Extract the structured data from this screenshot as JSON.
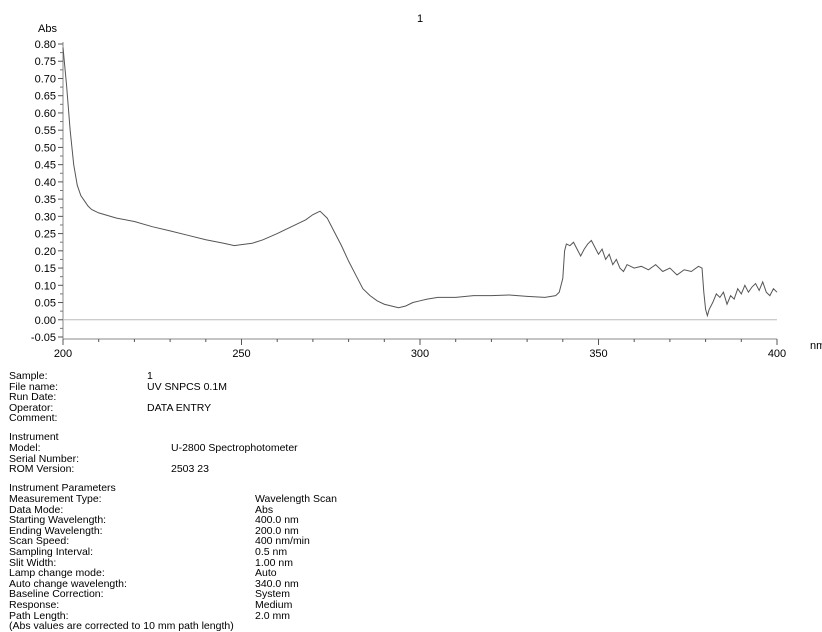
{
  "chart_data": {
    "type": "line",
    "title": "1",
    "ylabel": "Abs",
    "xlabel": "nm",
    "xlim": [
      200,
      400
    ],
    "ylim": [
      -0.05,
      0.8
    ],
    "xticks": [
      200,
      250,
      300,
      350,
      400
    ],
    "yticks": [
      "0.80",
      "0.75",
      "0.70",
      "0.65",
      "0.60",
      "0.55",
      "0.50",
      "0.45",
      "0.40",
      "0.35",
      "0.30",
      "0.25",
      "0.20",
      "0.15",
      "0.10",
      "0.05",
      "0.00",
      "-0.05"
    ],
    "series": [
      {
        "color": "#555555",
        "points": [
          [
            200,
            0.79
          ],
          [
            201,
            0.68
          ],
          [
            202,
            0.55
          ],
          [
            203,
            0.45
          ],
          [
            204,
            0.39
          ],
          [
            205,
            0.36
          ],
          [
            206,
            0.345
          ],
          [
            207,
            0.33
          ],
          [
            208,
            0.32
          ],
          [
            210,
            0.31
          ],
          [
            215,
            0.295
          ],
          [
            220,
            0.285
          ],
          [
            225,
            0.27
          ],
          [
            230,
            0.258
          ],
          [
            235,
            0.245
          ],
          [
            240,
            0.232
          ],
          [
            245,
            0.222
          ],
          [
            248,
            0.215
          ],
          [
            250,
            0.218
          ],
          [
            253,
            0.222
          ],
          [
            256,
            0.232
          ],
          [
            260,
            0.25
          ],
          [
            264,
            0.27
          ],
          [
            268,
            0.29
          ],
          [
            270,
            0.305
          ],
          [
            272,
            0.315
          ],
          [
            274,
            0.295
          ],
          [
            276,
            0.255
          ],
          [
            278,
            0.215
          ],
          [
            280,
            0.17
          ],
          [
            282,
            0.13
          ],
          [
            284,
            0.09
          ],
          [
            286,
            0.07
          ],
          [
            288,
            0.055
          ],
          [
            290,
            0.045
          ],
          [
            292,
            0.04
          ],
          [
            294,
            0.035
          ],
          [
            296,
            0.04
          ],
          [
            298,
            0.05
          ],
          [
            300,
            0.055
          ],
          [
            302,
            0.06
          ],
          [
            305,
            0.065
          ],
          [
            310,
            0.065
          ],
          [
            315,
            0.07
          ],
          [
            320,
            0.07
          ],
          [
            325,
            0.072
          ],
          [
            330,
            0.068
          ],
          [
            335,
            0.065
          ],
          [
            338,
            0.07
          ],
          [
            339,
            0.08
          ],
          [
            340,
            0.12
          ],
          [
            340.5,
            0.2
          ],
          [
            341,
            0.22
          ],
          [
            342,
            0.215
          ],
          [
            343,
            0.225
          ],
          [
            344,
            0.205
          ],
          [
            345,
            0.185
          ],
          [
            346,
            0.205
          ],
          [
            347,
            0.22
          ],
          [
            348,
            0.23
          ],
          [
            349,
            0.21
          ],
          [
            350,
            0.19
          ],
          [
            351,
            0.205
          ],
          [
            352,
            0.175
          ],
          [
            353,
            0.19
          ],
          [
            354,
            0.16
          ],
          [
            355,
            0.175
          ],
          [
            356,
            0.15
          ],
          [
            357,
            0.14
          ],
          [
            358,
            0.16
          ],
          [
            360,
            0.15
          ],
          [
            362,
            0.155
          ],
          [
            364,
            0.145
          ],
          [
            366,
            0.16
          ],
          [
            368,
            0.14
          ],
          [
            370,
            0.15
          ],
          [
            372,
            0.13
          ],
          [
            374,
            0.145
          ],
          [
            376,
            0.14
          ],
          [
            378,
            0.155
          ],
          [
            379,
            0.15
          ],
          [
            379.5,
            0.08
          ],
          [
            380,
            0.03
          ],
          [
            380.5,
            0.012
          ],
          [
            381,
            0.03
          ],
          [
            382,
            0.05
          ],
          [
            383,
            0.075
          ],
          [
            384,
            0.065
          ],
          [
            385,
            0.08
          ],
          [
            386,
            0.045
          ],
          [
            387,
            0.07
          ],
          [
            388,
            0.06
          ],
          [
            389,
            0.09
          ],
          [
            390,
            0.075
          ],
          [
            391,
            0.1
          ],
          [
            392,
            0.08
          ],
          [
            393,
            0.095
          ],
          [
            394,
            0.105
          ],
          [
            395,
            0.085
          ],
          [
            396,
            0.11
          ],
          [
            397,
            0.08
          ],
          [
            398,
            0.07
          ],
          [
            399,
            0.09
          ],
          [
            400,
            0.08
          ]
        ]
      }
    ],
    "zero_line": 0.0
  },
  "info": {
    "sample": {
      "rows": [
        {
          "label": "Sample:",
          "value": "1"
        },
        {
          "label": "File name:",
          "value": "UV SNPCS 0.1M"
        },
        {
          "label": "Run Date:",
          "value": ""
        },
        {
          "label": "Operator:",
          "value": "DATA ENTRY"
        },
        {
          "label": "Comment:",
          "value": ""
        }
      ]
    },
    "instrument": {
      "heading": "Instrument",
      "rows": [
        {
          "label": "Model:",
          "value": "U-2800 Spectrophotometer"
        },
        {
          "label": "Serial Number:",
          "value": ""
        },
        {
          "label": "ROM Version:",
          "value": "2503 23"
        }
      ]
    },
    "parameters": {
      "heading": "Instrument Parameters",
      "rows": [
        {
          "label": "Measurement Type:",
          "value": "Wavelength Scan"
        },
        {
          "label": "Data Mode:",
          "value": "Abs"
        },
        {
          "label": "Starting Wavelength:",
          "value": "400.0 nm"
        },
        {
          "label": "Ending Wavelength:",
          "value": "200.0 nm"
        },
        {
          "label": "Scan Speed:",
          "value": "400 nm/min"
        },
        {
          "label": "Sampling Interval:",
          "value": "0.5 nm"
        },
        {
          "label": "Slit Width:",
          "value": "1.00 nm"
        },
        {
          "label": "Lamp change mode:",
          "value": "Auto"
        },
        {
          "label": "Auto change wavelength:",
          "value": "340.0 nm"
        },
        {
          "label": "Baseline Correction:",
          "value": "System"
        },
        {
          "label": "Response:",
          "value": "Medium"
        },
        {
          "label": "Path Length:",
          "value": "2.0 mm"
        }
      ],
      "footnote": "(Abs values are corrected to 10 mm path length)"
    }
  }
}
